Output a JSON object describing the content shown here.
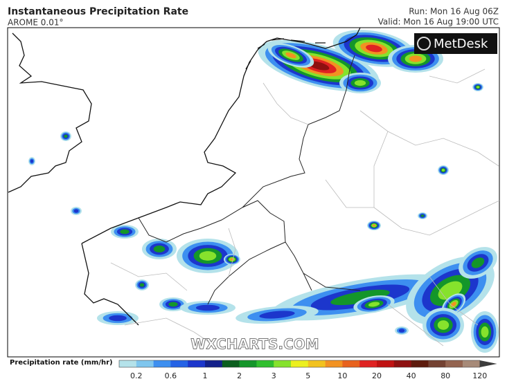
{
  "header": {
    "title": "Instantaneous Precipitation Rate",
    "subtitle": "AROME 0.01°",
    "run": "Run: Mon 16 Aug 06Z",
    "valid": "Valid: Mon 16 Aug 19:00 UTC"
  },
  "map": {
    "logo": "MetDesk",
    "watermark": "WXCHARTS.COM"
  },
  "legend": {
    "label": "Precipitation rate (mm/hr)",
    "colors": [
      "#b4e2ea",
      "#7fc6ee",
      "#3d8ff0",
      "#2563e6",
      "#1c36cc",
      "#13208a",
      "#0b5e1e",
      "#14962a",
      "#30bf2e",
      "#86e22c",
      "#ecf01e",
      "#f2c21e",
      "#f29222",
      "#e8621e",
      "#e02222",
      "#c01212",
      "#8e1010",
      "#5e1c0e",
      "#744232",
      "#946450",
      "#a78a78",
      "#3c3c3c"
    ],
    "ticks": [
      0.2,
      0.6,
      1,
      2,
      3,
      5,
      10,
      20,
      40,
      80,
      120
    ]
  }
}
